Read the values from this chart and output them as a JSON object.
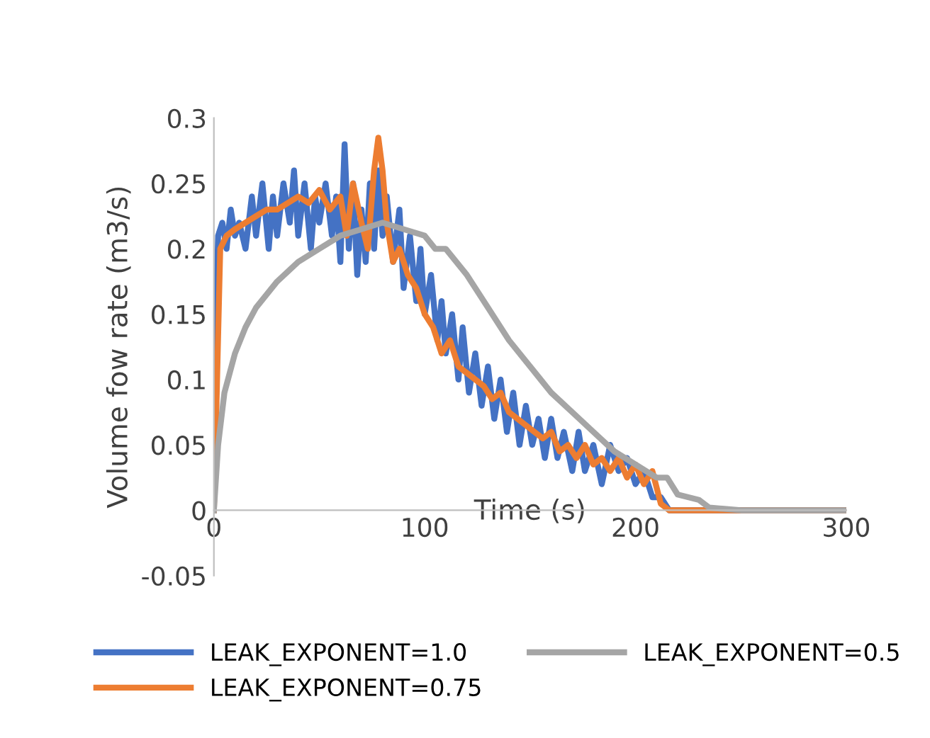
{
  "chart_data": {
    "type": "line",
    "xlabel": "Time (s)",
    "ylabel": "Volume fow rate (m3/s)",
    "xlim": [
      0,
      300
    ],
    "xticks": [
      0,
      100,
      200,
      300
    ],
    "ylim": [
      -0.05,
      0.3
    ],
    "yticks": [
      -0.05,
      0,
      0.05,
      0.1,
      0.15,
      0.2,
      0.25,
      0.3
    ],
    "grid": false,
    "legend": "bottom",
    "marker": "none",
    "line_style": "solid",
    "series": [
      {
        "name": "LEAK_EXPONENT=1.0",
        "color": "#4472c4",
        "x": [
          0,
          1,
          2,
          4,
          6,
          8,
          10,
          12,
          15,
          18,
          20,
          23,
          26,
          28,
          30,
          33,
          36,
          38,
          40,
          43,
          46,
          48,
          50,
          53,
          56,
          58,
          60,
          62,
          64,
          66,
          68,
          70,
          72,
          74,
          76,
          78,
          80,
          82,
          85,
          88,
          90,
          93,
          96,
          98,
          100,
          103,
          106,
          108,
          110,
          113,
          116,
          118,
          121,
          124,
          127,
          130,
          133,
          136,
          139,
          142,
          145,
          148,
          151,
          154,
          157,
          160,
          163,
          166,
          170,
          173,
          176,
          180,
          184,
          188,
          192,
          196,
          200,
          204,
          208,
          212,
          216,
          240,
          300
        ],
        "values": [
          0,
          0.15,
          0.21,
          0.22,
          0.2,
          0.23,
          0.21,
          0.22,
          0.2,
          0.24,
          0.21,
          0.25,
          0.2,
          0.24,
          0.21,
          0.25,
          0.22,
          0.26,
          0.21,
          0.25,
          0.2,
          0.24,
          0.22,
          0.25,
          0.21,
          0.24,
          0.19,
          0.28,
          0.2,
          0.25,
          0.18,
          0.23,
          0.19,
          0.25,
          0.2,
          0.26,
          0.21,
          0.24,
          0.19,
          0.23,
          0.17,
          0.21,
          0.16,
          0.2,
          0.15,
          0.18,
          0.13,
          0.16,
          0.12,
          0.15,
          0.1,
          0.14,
          0.09,
          0.12,
          0.08,
          0.11,
          0.07,
          0.1,
          0.06,
          0.09,
          0.05,
          0.08,
          0.05,
          0.07,
          0.04,
          0.07,
          0.04,
          0.06,
          0.03,
          0.06,
          0.03,
          0.05,
          0.02,
          0.05,
          0.03,
          0.04,
          0.02,
          0.03,
          0.01,
          0.01,
          0,
          0,
          0
        ]
      },
      {
        "name": "LEAK_EXPONENT=0.75",
        "color": "#ed7d31",
        "x": [
          0,
          3,
          6,
          10,
          15,
          20,
          25,
          30,
          35,
          40,
          45,
          50,
          55,
          60,
          63,
          66,
          70,
          73,
          76,
          78,
          80,
          82,
          85,
          88,
          92,
          96,
          100,
          104,
          108,
          112,
          116,
          120,
          124,
          128,
          132,
          136,
          140,
          144,
          148,
          152,
          156,
          160,
          164,
          168,
          172,
          176,
          180,
          184,
          188,
          192,
          196,
          200,
          204,
          208,
          212,
          216,
          300
        ],
        "values": [
          0,
          0.2,
          0.21,
          0.215,
          0.22,
          0.225,
          0.23,
          0.23,
          0.235,
          0.24,
          0.235,
          0.245,
          0.23,
          0.24,
          0.21,
          0.25,
          0.22,
          0.2,
          0.26,
          0.285,
          0.26,
          0.22,
          0.19,
          0.2,
          0.18,
          0.17,
          0.15,
          0.14,
          0.12,
          0.13,
          0.11,
          0.105,
          0.1,
          0.095,
          0.085,
          0.09,
          0.075,
          0.07,
          0.065,
          0.06,
          0.055,
          0.06,
          0.045,
          0.05,
          0.04,
          0.05,
          0.035,
          0.04,
          0.03,
          0.04,
          0.025,
          0.035,
          0.02,
          0.03,
          0.005,
          0,
          0
        ]
      },
      {
        "name": "LEAK_EXPONENT=0.5",
        "color": "#a5a5a5",
        "x": [
          0,
          2,
          5,
          10,
          15,
          20,
          30,
          40,
          50,
          60,
          70,
          80,
          90,
          100,
          105,
          110,
          120,
          130,
          140,
          150,
          160,
          170,
          180,
          190,
          200,
          210,
          215,
          220,
          230,
          235,
          250,
          300
        ],
        "values": [
          0,
          0.05,
          0.09,
          0.12,
          0.14,
          0.155,
          0.175,
          0.19,
          0.2,
          0.21,
          0.215,
          0.22,
          0.215,
          0.21,
          0.2,
          0.2,
          0.18,
          0.155,
          0.13,
          0.11,
          0.09,
          0.075,
          0.06,
          0.045,
          0.035,
          0.025,
          0.025,
          0.012,
          0.008,
          0.002,
          0,
          0
        ]
      }
    ]
  }
}
